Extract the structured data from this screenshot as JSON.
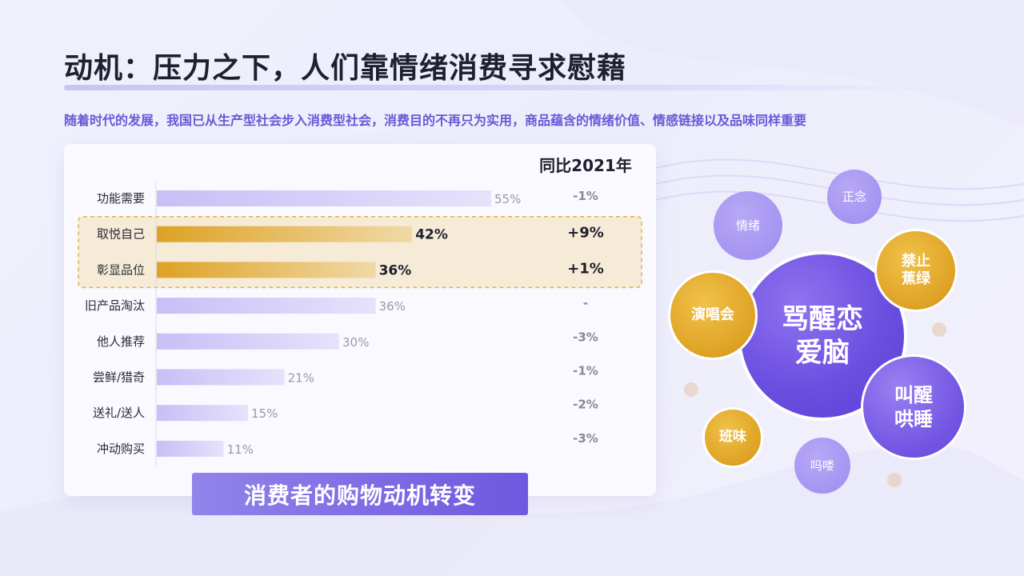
{
  "page": {
    "title": "动机：压力之下，人们靠情绪消费寻求慰藉",
    "subtitle": "随着时代的发展，我国已从生产型社会步入消费型社会，消费目的不再只为实用，商品蕴含的情绪价值、情感链接以及品味同样重要"
  },
  "colors": {
    "accent": "#6e58df",
    "bar_normal": "#cfc8f7",
    "bar_highlight": "#dea224",
    "highlight_box": "#f5ebd6",
    "gold": "#dea224"
  },
  "chart_data": {
    "type": "bar",
    "orientation": "horizontal",
    "categories": [
      "功能需要",
      "取悦自己",
      "彰显品位",
      "旧产品淘汰",
      "他人推荐",
      "尝鲜/猎奇",
      "送礼/送人",
      "冲动购买"
    ],
    "values": [
      55,
      42,
      36,
      36,
      30,
      21,
      15,
      11
    ],
    "value_labels": [
      "55%",
      "42%",
      "36%",
      "36%",
      "30%",
      "21%",
      "15%",
      "11%"
    ],
    "highlighted": [
      "取悦自己",
      "彰显品位"
    ],
    "yoy_header": "同比2021年",
    "yoy_changes": [
      "-1%",
      "+9%",
      "+1%",
      "-",
      "-3%",
      "-1%",
      "-2%",
      "-3%"
    ],
    "xlim": [
      0,
      100
    ],
    "caption": "消费者的购物动机转变"
  },
  "bubbles": [
    {
      "text": "骂醒恋\n爱脑",
      "style": "purple-big"
    },
    {
      "text": "演唱会",
      "style": "gold"
    },
    {
      "text": "禁止\n蕉绿",
      "style": "gold"
    },
    {
      "text": "班味",
      "style": "gold"
    },
    {
      "text": "叫醒\n哄睡",
      "style": "purple"
    },
    {
      "text": "情绪",
      "style": "light"
    },
    {
      "text": "正念",
      "style": "light"
    },
    {
      "text": "吗喽",
      "style": "light"
    }
  ]
}
